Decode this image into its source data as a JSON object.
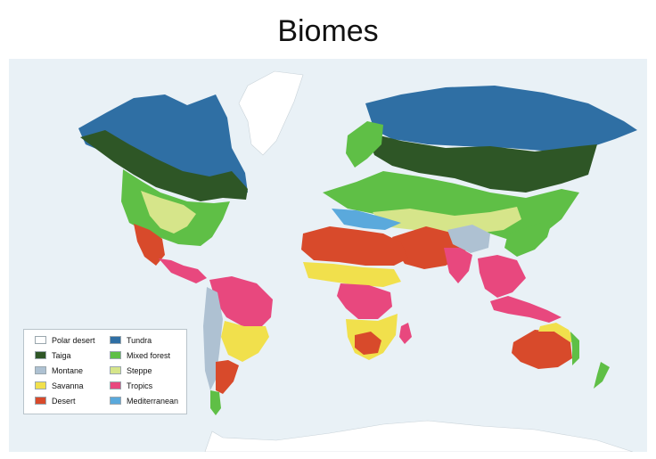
{
  "title": "Biomes",
  "colors": {
    "ocean": "#e9f1f6",
    "polar_desert": "#ffffff",
    "tundra": "#2f6fa4",
    "taiga": "#2e5626",
    "mixed_forest": "#5fbf46",
    "montane": "#aec1d2",
    "steppe": "#d6e58a",
    "savanna": "#f1e04c",
    "tropics": "#e8487e",
    "desert": "#d84a2b",
    "mediterranean": "#5aa9dc"
  },
  "legend": [
    {
      "label": "Polar desert",
      "color": "#ffffff"
    },
    {
      "label": "Tundra",
      "color": "#2f6fa4"
    },
    {
      "label": "Taiga",
      "color": "#2e5626"
    },
    {
      "label": "Mixed forest",
      "color": "#5fbf46"
    },
    {
      "label": "Montane",
      "color": "#aec1d2"
    },
    {
      "label": "Steppe",
      "color": "#d6e58a"
    },
    {
      "label": "Savanna",
      "color": "#f1e04c"
    },
    {
      "label": "Tropics",
      "color": "#e8487e"
    },
    {
      "label": "Desert",
      "color": "#d84a2b"
    },
    {
      "label": "Mediterranean",
      "color": "#5aa9dc"
    }
  ]
}
